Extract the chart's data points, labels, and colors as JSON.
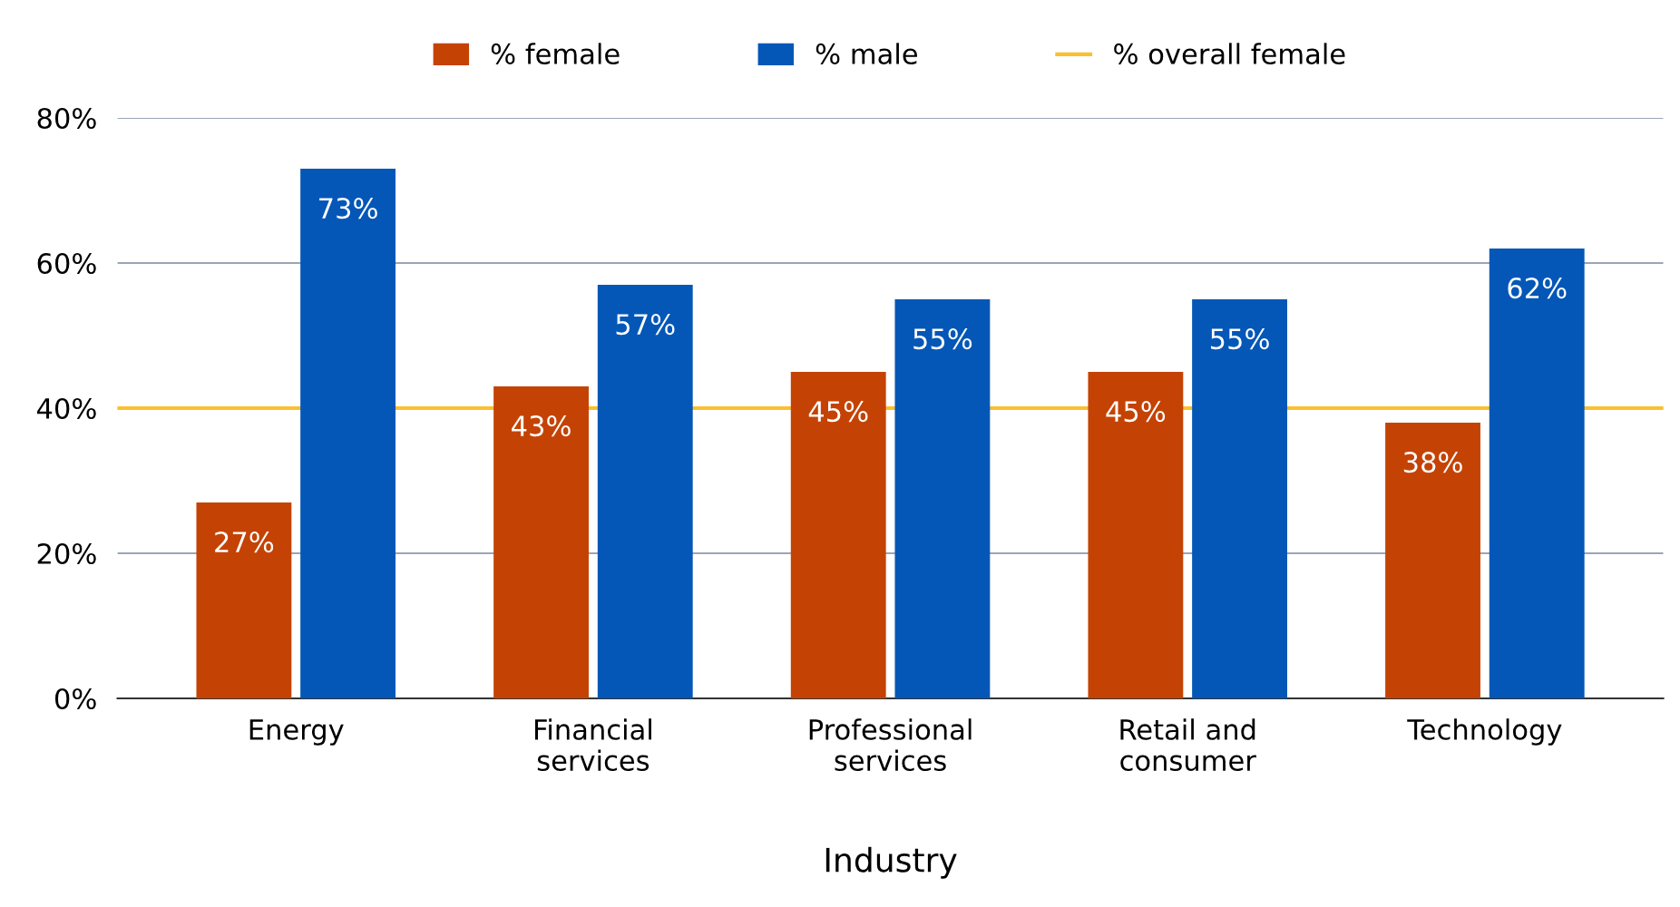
{
  "chart_data": {
    "type": "bar",
    "xlabel": "Industry",
    "categories": [
      "Energy",
      "Financial\nservices",
      "Professional\nservices",
      "Retail and\nconsumer",
      "Technology"
    ],
    "series": [
      {
        "name": "% female",
        "color": "#c44304",
        "values": [
          27,
          43,
          45,
          45,
          38
        ],
        "value_labels": [
          "27%",
          "43%",
          "45%",
          "45%",
          "38%"
        ]
      },
      {
        "name": "% male",
        "color": "#0457b7",
        "values": [
          73,
          57,
          55,
          55,
          62
        ],
        "value_labels": [
          "73%",
          "57%",
          "55%",
          "55%",
          "62%"
        ]
      }
    ],
    "ref_lines": [
      {
        "axis": "y",
        "value": 40,
        "label": "% overall female",
        "color": "#fbc02d"
      }
    ],
    "ylim": [
      0,
      80
    ],
    "yticks": [
      {
        "value": 0,
        "label": "0%"
      },
      {
        "value": 20,
        "label": "20%"
      },
      {
        "value": 40,
        "label": "40%"
      },
      {
        "value": 60,
        "label": "60%"
      },
      {
        "value": 80,
        "label": "80%"
      }
    ],
    "grid": "y",
    "legend": "top"
  }
}
